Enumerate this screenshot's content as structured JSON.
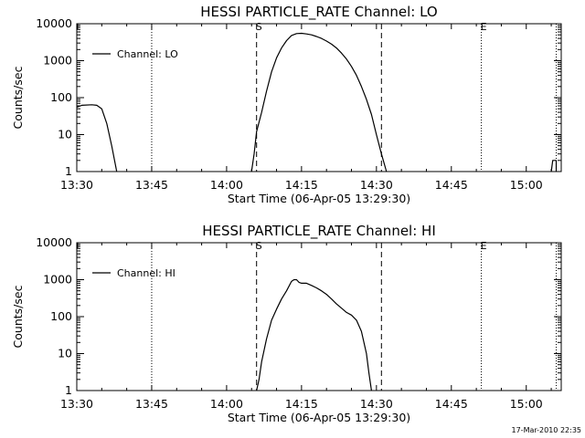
{
  "chart_data": [
    {
      "type": "line",
      "title": "HESSI PARTICLE_RATE Channel: LO",
      "xlabel": "Start Time (06-Apr-05 13:29:30)",
      "ylabel": "Counts/sec",
      "y_scale": "log",
      "ylim": [
        1,
        10000
      ],
      "xlim": [
        "13:30",
        "15:07"
      ],
      "x_ticks": [
        "13:30",
        "13:45",
        "14:00",
        "14:15",
        "14:30",
        "14:45",
        "15:00"
      ],
      "y_ticks": [
        "1",
        "10",
        "100",
        "1000",
        "10000"
      ],
      "legend": {
        "label": "Channel: LO",
        "placement": "top-left"
      },
      "markers": [
        {
          "label": "S",
          "time": "14:06",
          "style": "dashed"
        },
        {
          "label": "",
          "time": "14:31",
          "style": "dashed"
        },
        {
          "label": "E",
          "time": "14:51",
          "style": "dotted"
        },
        {
          "label": "",
          "time": "13:45",
          "style": "dotted"
        },
        {
          "label": "",
          "time": "15:06",
          "style": "dotted"
        }
      ],
      "series": [
        {
          "segments": [
            [
              [
                "13:30",
                55
              ],
              [
                "13:31",
                62
              ],
              [
                "13:33",
                64
              ],
              [
                "13:34",
                62
              ],
              [
                "13:35",
                50
              ],
              [
                "13:36",
                20
              ],
              [
                "13:37",
                5
              ],
              [
                "13:38",
                1
              ]
            ],
            [
              [
                "14:05",
                1
              ],
              [
                "14:05.5",
                3
              ],
              [
                "14:06",
                12
              ],
              [
                "14:07",
                40
              ],
              [
                "14:08",
                150
              ],
              [
                "14:09",
                500
              ],
              [
                "14:10",
                1200
              ],
              [
                "14:11",
                2200
              ],
              [
                "14:12",
                3500
              ],
              [
                "14:13",
                4800
              ],
              [
                "14:14",
                5400
              ],
              [
                "14:15",
                5500
              ],
              [
                "14:16",
                5300
              ],
              [
                "14:17",
                5000
              ],
              [
                "14:18",
                4500
              ],
              [
                "14:19",
                4000
              ],
              [
                "14:20",
                3400
              ],
              [
                "14:21",
                2800
              ],
              [
                "14:22",
                2200
              ],
              [
                "14:23",
                1600
              ],
              [
                "14:24",
                1100
              ],
              [
                "14:25",
                700
              ],
              [
                "14:26",
                400
              ],
              [
                "14:27",
                200
              ],
              [
                "14:28",
                90
              ],
              [
                "14:29",
                35
              ],
              [
                "14:30",
                10
              ],
              [
                "14:31",
                3
              ],
              [
                "14:32",
                1
              ]
            ],
            [
              [
                "15:05",
                1
              ],
              [
                "15:05.3",
                2
              ],
              [
                "15:06",
                2
              ],
              [
                "15:06",
                1
              ]
            ]
          ]
        }
      ]
    },
    {
      "type": "line",
      "title": "HESSI PARTICLE_RATE Channel: HI",
      "xlabel": "Start Time (06-Apr-05 13:29:30)",
      "ylabel": "Counts/sec",
      "y_scale": "log",
      "ylim": [
        1,
        10000
      ],
      "xlim": [
        "13:30",
        "15:07"
      ],
      "x_ticks": [
        "13:30",
        "13:45",
        "14:00",
        "14:15",
        "14:30",
        "14:45",
        "15:00"
      ],
      "y_ticks": [
        "1",
        "10",
        "100",
        "1000",
        "10000"
      ],
      "legend": {
        "label": "Channel: HI",
        "placement": "top-left"
      },
      "markers": [
        {
          "label": "S",
          "time": "14:06",
          "style": "dashed"
        },
        {
          "label": "",
          "time": "14:31",
          "style": "dashed"
        },
        {
          "label": "E",
          "time": "14:51",
          "style": "dotted"
        },
        {
          "label": "",
          "time": "13:45",
          "style": "dotted"
        },
        {
          "label": "",
          "time": "15:06",
          "style": "dotted"
        }
      ],
      "series": [
        {
          "segments": [
            [
              [
                "14:06",
                1
              ],
              [
                "14:06.5",
                2
              ],
              [
                "14:07",
                6
              ],
              [
                "14:08",
                25
              ],
              [
                "14:09",
                80
              ],
              [
                "14:10",
                160
              ],
              [
                "14:11",
                300
              ],
              [
                "14:12",
                500
              ],
              [
                "14:13",
                900
              ],
              [
                "14:13.5",
                1000
              ],
              [
                "14:14",
                1000
              ],
              [
                "14:14.5",
                850
              ],
              [
                "14:15",
                800
              ],
              [
                "14:16",
                800
              ],
              [
                "14:17",
                700
              ],
              [
                "14:18",
                600
              ],
              [
                "14:19",
                500
              ],
              [
                "14:20",
                400
              ],
              [
                "14:21",
                300
              ],
              [
                "14:22",
                220
              ],
              [
                "14:23",
                170
              ],
              [
                "14:24",
                130
              ],
              [
                "14:25",
                110
              ],
              [
                "14:26",
                80
              ],
              [
                "14:27",
                40
              ],
              [
                "14:28",
                10
              ],
              [
                "14:28.5",
                3
              ],
              [
                "14:29",
                1
              ]
            ]
          ]
        }
      ]
    }
  ],
  "footer": {
    "timestamp": "17-Mar-2010 22:35"
  }
}
